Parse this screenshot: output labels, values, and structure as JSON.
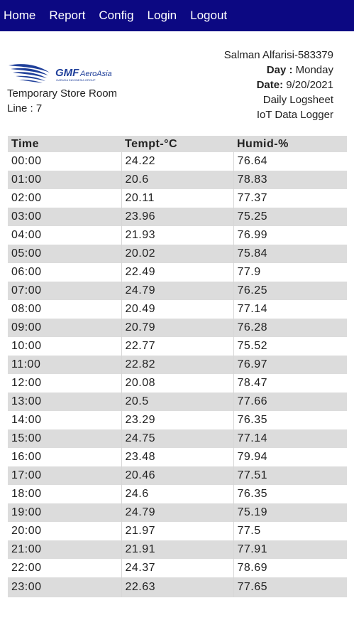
{
  "nav": {
    "items": [
      "Home",
      "Report",
      "Config",
      "Login",
      "Logout"
    ]
  },
  "header": {
    "logo_text": "GMF AeroAsia",
    "logo_subtext": "GARUDA INDONESIA GROUP",
    "location": "Temporary Store Room",
    "line": "Line : 7",
    "user": "Salman Alfarisi-583379",
    "day_label": "Day :",
    "day_value": "Monday",
    "date_label": "Date:",
    "date_value": "9/20/2021",
    "log_type": "Daily Logsheet",
    "system_name": "IoT Data Logger"
  },
  "table": {
    "headers": [
      "Time",
      "Tempt-°C",
      "Humid-%"
    ],
    "rows": [
      [
        "00:00",
        "24.22",
        "76.64"
      ],
      [
        "01:00",
        "20.6",
        "78.83"
      ],
      [
        "02:00",
        "20.11",
        "77.37"
      ],
      [
        "03:00",
        "23.96",
        "75.25"
      ],
      [
        "04:00",
        "21.93",
        "76.99"
      ],
      [
        "05:00",
        "20.02",
        "75.84"
      ],
      [
        "06:00",
        "22.49",
        "77.9"
      ],
      [
        "07:00",
        "24.79",
        "76.25"
      ],
      [
        "08:00",
        "20.49",
        "77.14"
      ],
      [
        "09:00",
        "20.79",
        "76.28"
      ],
      [
        "10:00",
        "22.77",
        "75.52"
      ],
      [
        "11:00",
        "22.82",
        "76.97"
      ],
      [
        "12:00",
        "20.08",
        "78.47"
      ],
      [
        "13:00",
        "20.5",
        "77.66"
      ],
      [
        "14:00",
        "23.29",
        "76.35"
      ],
      [
        "15:00",
        "24.75",
        "77.14"
      ],
      [
        "16:00",
        "23.48",
        "79.94"
      ],
      [
        "17:00",
        "20.46",
        "77.51"
      ],
      [
        "18:00",
        "24.6",
        "76.35"
      ],
      [
        "19:00",
        "24.79",
        "75.19"
      ],
      [
        "20:00",
        "21.97",
        "77.5"
      ],
      [
        "21:00",
        "21.91",
        "77.91"
      ],
      [
        "22:00",
        "24.37",
        "78.69"
      ],
      [
        "23:00",
        "22.63",
        "77.65"
      ]
    ]
  },
  "colors": {
    "navbar": "#0c0882",
    "row_alt": "#dcdcdc",
    "logo_blue": "#1f3f9a"
  }
}
